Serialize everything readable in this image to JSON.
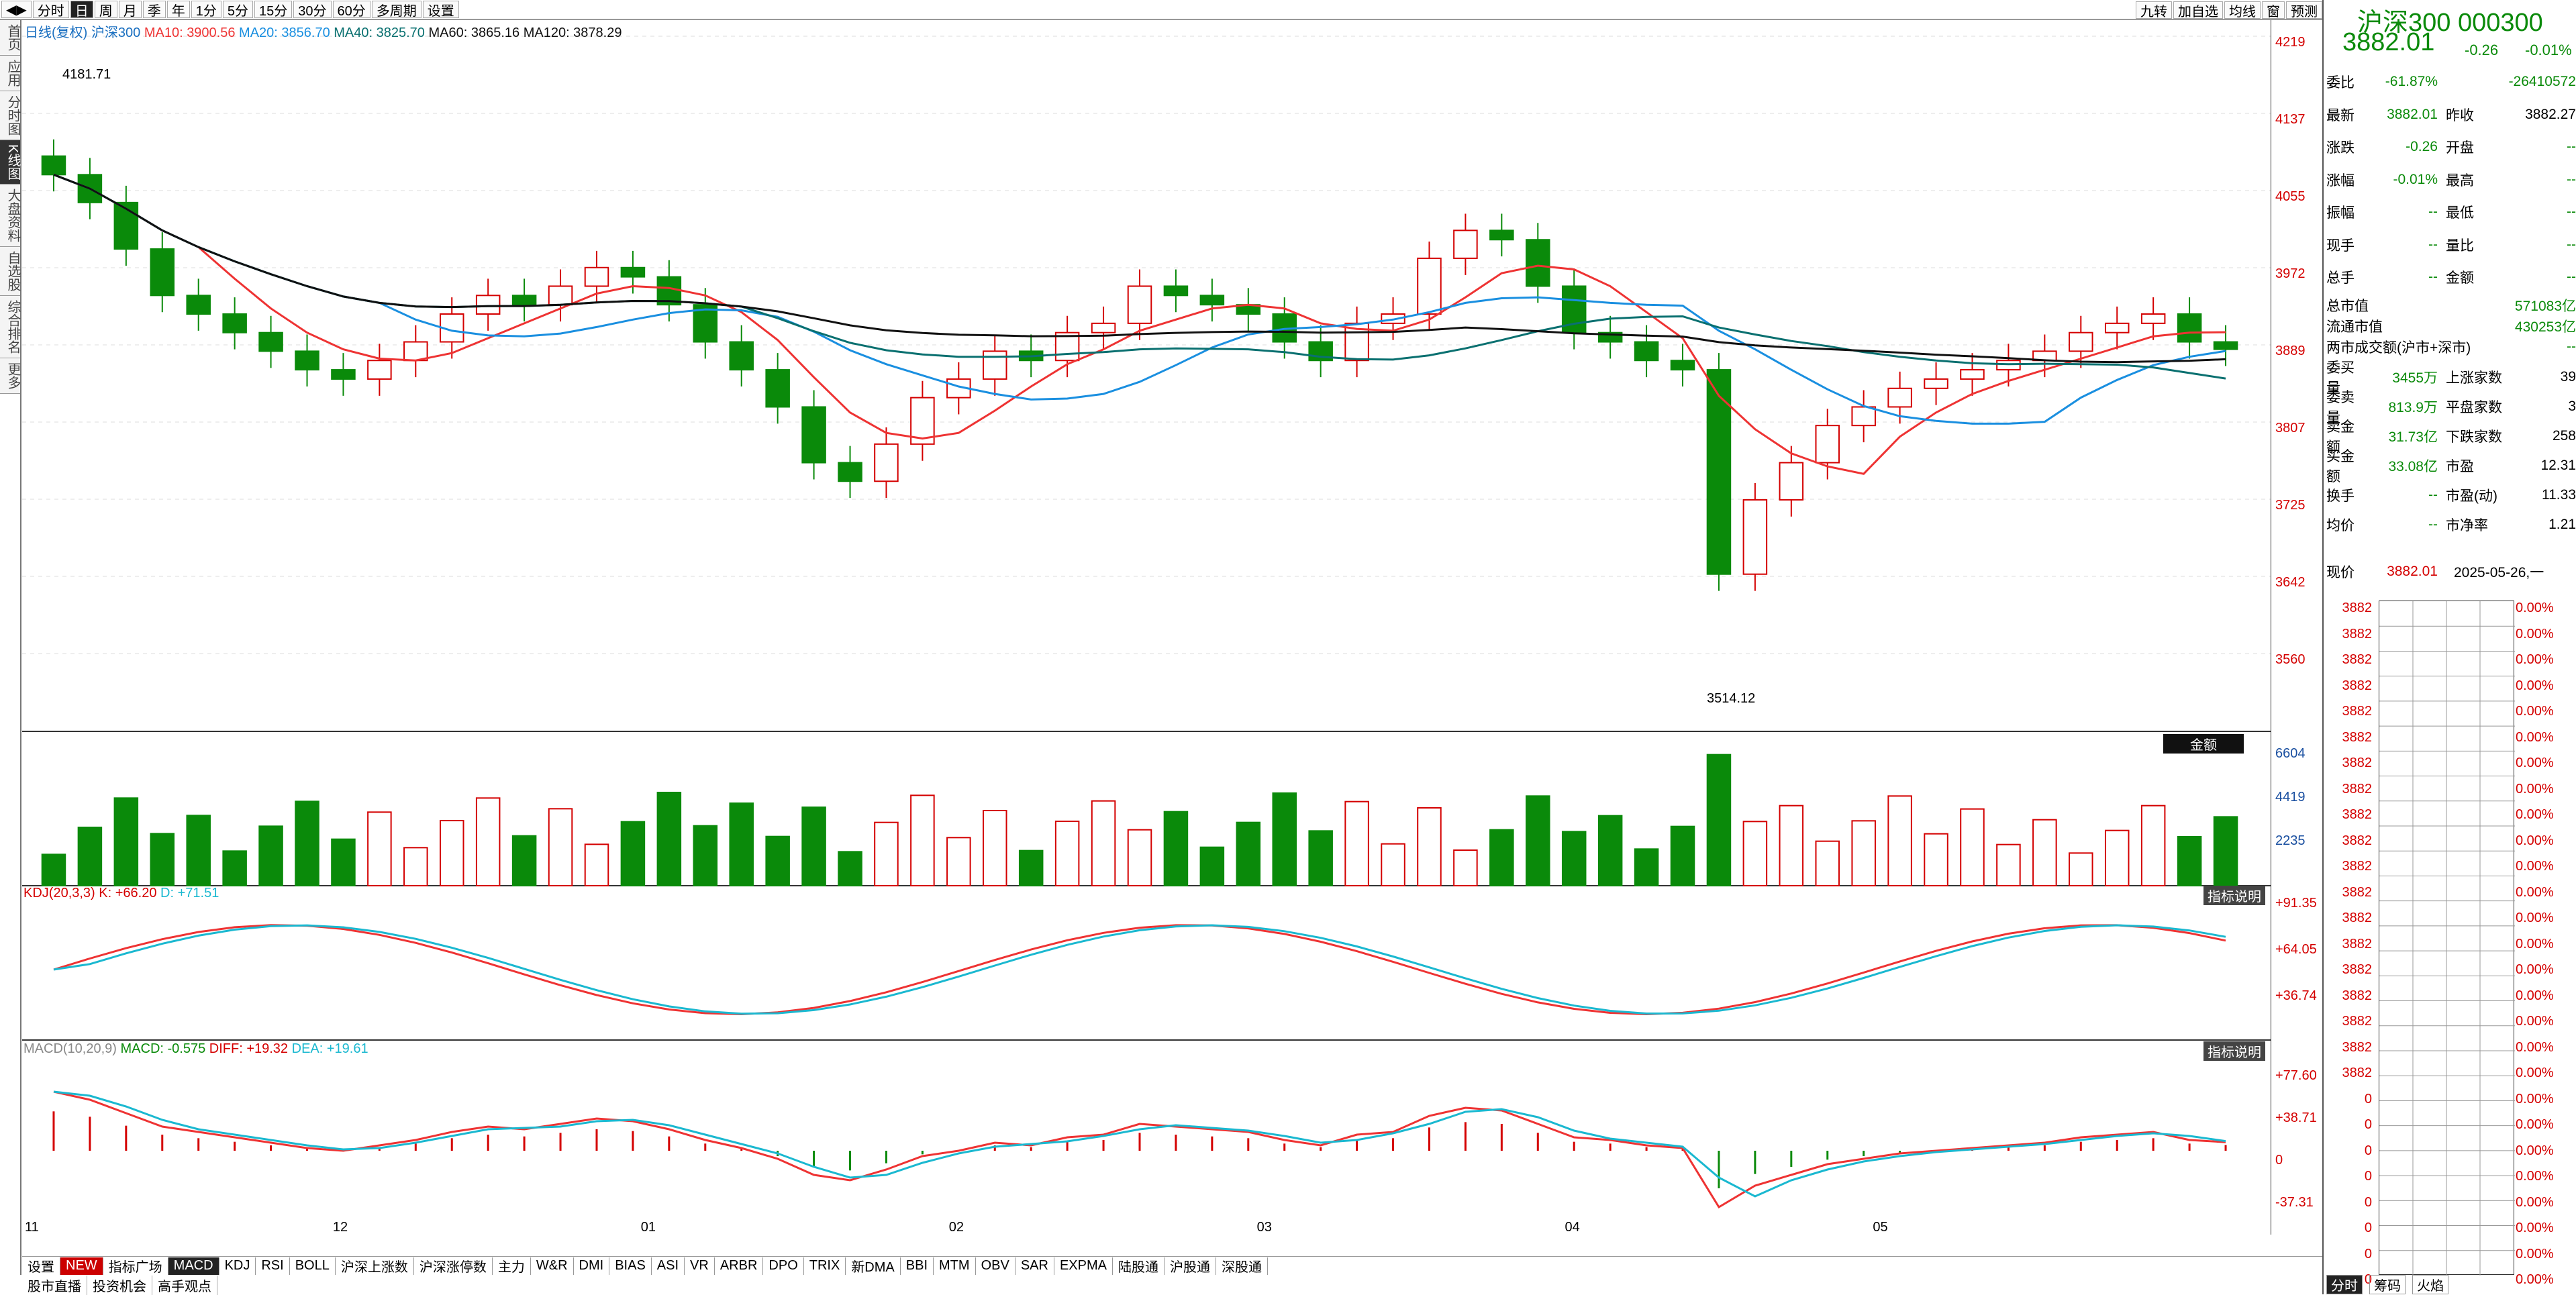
{
  "toolbar": {
    "items": [
      "分时",
      "日",
      "周",
      "月",
      "季",
      "年",
      "1分",
      "5分",
      "15分",
      "30分",
      "60分",
      "多周期",
      "设置"
    ],
    "active": "日",
    "right_items": [
      "九转",
      "加自选",
      "均线",
      "窗",
      "预测"
    ]
  },
  "left_strip": [
    "首页",
    "应用",
    "分时图",
    "K线图",
    "大盘资料",
    "自选股",
    "综合排名",
    "更多"
  ],
  "left_active": "K线图",
  "chart_header": {
    "label": "日线(复权)",
    "name": "沪深300",
    "ma10": "MA10: 3900.56",
    "ma20": "MA20: 3856.70",
    "ma40": "MA40: 3825.70",
    "ma60": "MA60: 3865.16",
    "ma120": "MA120: 3878.29"
  },
  "price_axis": [
    "4219",
    "4137",
    "4055",
    "3972",
    "3889",
    "3807",
    "3725",
    "3642",
    "3560"
  ],
  "annotations": {
    "high": "4181.71",
    "low": "3514.12"
  },
  "volume": {
    "tag": "金额",
    "axis": [
      "6604",
      "4419",
      "2235"
    ]
  },
  "kdj": {
    "label": "KDJ(20,3,3)",
    "k": "K: +66.20",
    "d": "D: +71.51",
    "tag": "指标说明",
    "axis": [
      "+91.35",
      "+64.05",
      "+36.74"
    ]
  },
  "macd": {
    "label": "MACD(10,20,9)",
    "macd": "MACD: -0.575",
    "diff": "DIFF: +19.32",
    "dea": "DEA: +19.61",
    "tag": "指标说明",
    "axis": [
      "+77.60",
      "+38.71",
      "0",
      "-37.31"
    ]
  },
  "x_axis": [
    "11",
    "12",
    "01",
    "02",
    "03",
    "04",
    "05"
  ],
  "bottom_tabs": [
    "设置",
    "NEW",
    "指标广场",
    "MACD",
    "KDJ",
    "RSI",
    "BOLL",
    "沪深上涨数",
    "沪深涨停数",
    "主力",
    "W&R",
    "DMI",
    "BIAS",
    "ASI",
    "VR",
    "ARBR",
    "DPO",
    "TRIX",
    "新DMA",
    "BBI",
    "MTM",
    "OBV",
    "SAR",
    "EXPMA",
    "陆股通",
    "沪股通",
    "深股通"
  ],
  "bottom_active": "MACD",
  "bottom_links": [
    "股市直播",
    "投资机会",
    "高手观点"
  ],
  "quote": {
    "title": "沪深300 000300",
    "price": "3882.01",
    "change": "-0.26",
    "pct": "-0.01%",
    "rows": [
      [
        "委比",
        "-61.87%",
        "",
        "-26410572"
      ],
      [
        "最新",
        "3882.01",
        "昨收",
        "3882.27"
      ],
      [
        "涨跌",
        "-0.26",
        "开盘",
        "--"
      ],
      [
        "涨幅",
        "-0.01%",
        "最高",
        "--"
      ],
      [
        "振幅",
        "--",
        "最低",
        "--"
      ],
      [
        "现手",
        "--",
        "量比",
        "--"
      ],
      [
        "总手",
        "--",
        "金额",
        "--"
      ]
    ],
    "mkt": [
      [
        "总市值",
        "571083亿"
      ],
      [
        "流通市值",
        "430253亿"
      ],
      [
        "两市成交额(沪市+深市)",
        "--"
      ]
    ],
    "orders": [
      [
        "委买量",
        "3455万",
        "上涨家数",
        "39"
      ],
      [
        "委卖量",
        "813.9万",
        "平盘家数",
        "3"
      ],
      [
        "卖金额",
        "31.73亿",
        "下跌家数",
        "258"
      ],
      [
        "买金额",
        "33.08亿",
        "市盈",
        "12.31"
      ],
      [
        "换手",
        "--",
        "市盈(动)",
        "11.33"
      ],
      [
        "均价",
        "--",
        "市净率",
        "1.21"
      ]
    ],
    "now_label": "现价",
    "now_price": "3882.01",
    "date": "2025-05-26,一"
  },
  "depth": {
    "prices": [
      "3882",
      "3882",
      "3882",
      "3882",
      "3882",
      "3882",
      "3882",
      "3882",
      "3882",
      "3882",
      "3882",
      "3882",
      "3882",
      "3882",
      "3882",
      "3882",
      "3882",
      "3882",
      "3882",
      "0",
      "0",
      "0",
      "0",
      "0",
      "0",
      "0",
      "0"
    ],
    "pct": "0.00%"
  },
  "panel_tabs": [
    "分时",
    "筹码",
    "火焰"
  ],
  "colors": {
    "up": "#d40000",
    "down": "#0a8a0a",
    "ma10": "#e33",
    "ma20": "#1a8fe0",
    "ma40": "#0a7070",
    "ma60": "#111"
  },
  "chart_data": {
    "type": "candlestick",
    "x_months": [
      "11",
      "12",
      "01",
      "02",
      "03",
      "04",
      "05"
    ],
    "close_series": [
      4070,
      4040,
      3990,
      3940,
      3920,
      3900,
      3880,
      3860,
      3850,
      3870,
      3890,
      3920,
      3940,
      3930,
      3950,
      3970,
      3960,
      3930,
      3890,
      3860,
      3820,
      3760,
      3740,
      3780,
      3830,
      3850,
      3880,
      3870,
      3900,
      3910,
      3950,
      3940,
      3930,
      3920,
      3890,
      3870,
      3910,
      3920,
      3980,
      4010,
      4000,
      3950,
      3900,
      3890,
      3870,
      3860,
      3640,
      3720,
      3760,
      3800,
      3820,
      3840,
      3850,
      3860,
      3870,
      3880,
      3900,
      3910,
      3920,
      3890,
      3882.01
    ],
    "ylim": [
      3514.12,
      4219
    ]
  }
}
